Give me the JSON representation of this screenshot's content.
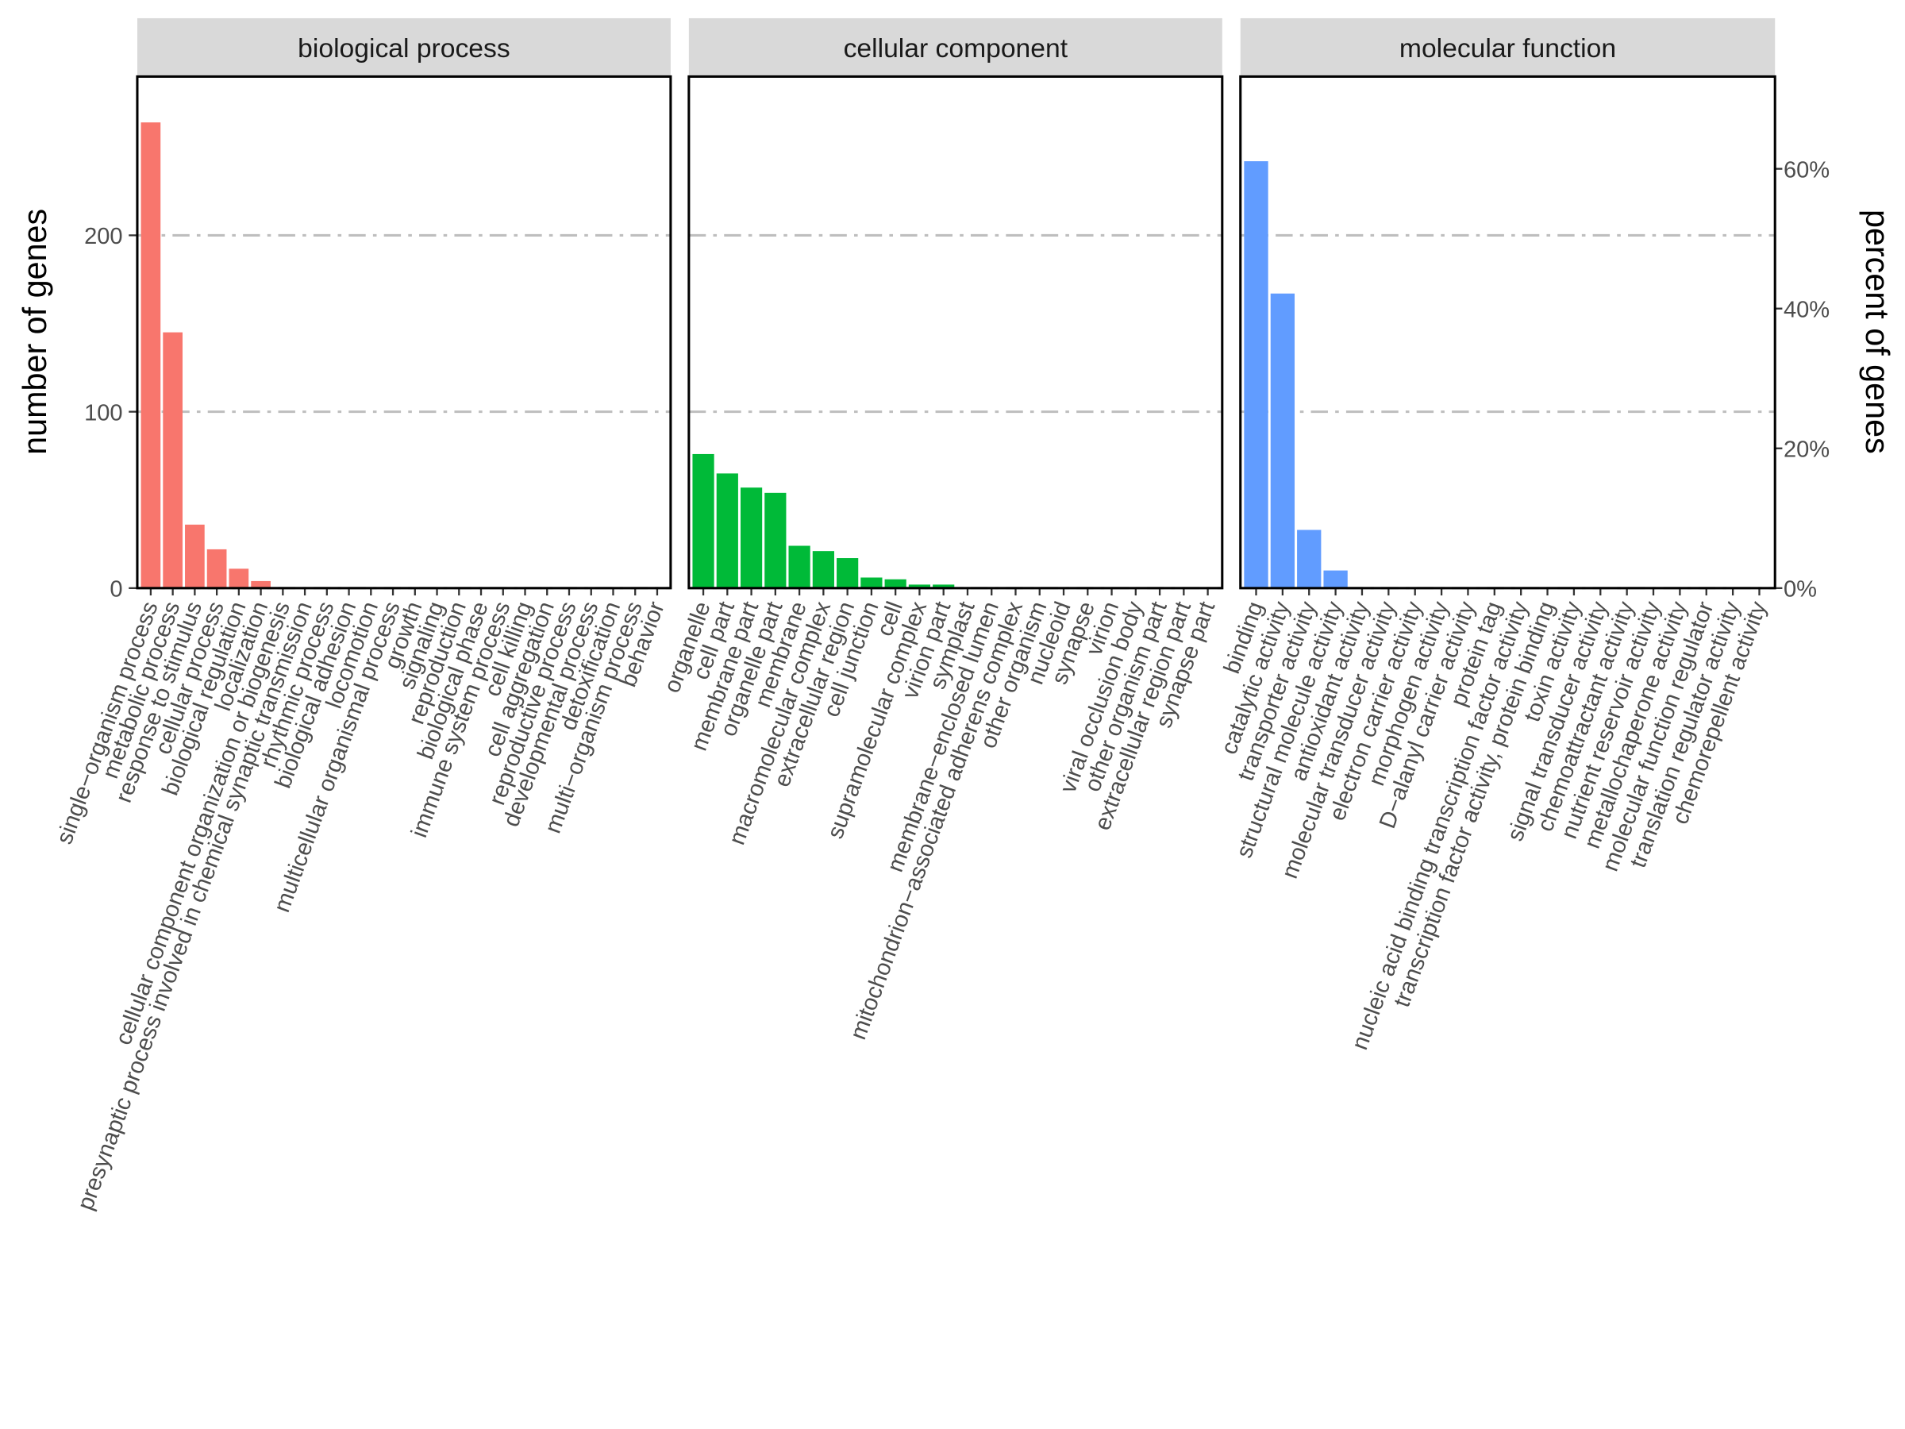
{
  "chart_data": {
    "type": "bar",
    "y_label": "number of genes",
    "y2_label": "percent of genes",
    "ylim": [
      0,
      290
    ],
    "yticks": [
      0,
      100,
      200
    ],
    "y2lim": [
      0,
      73.2
    ],
    "y2ticks": [
      {
        "value": 0,
        "label": "0%"
      },
      {
        "value": 20,
        "label": "20%"
      },
      {
        "value": 40,
        "label": "40%"
      },
      {
        "value": 60,
        "label": "60%"
      }
    ],
    "grid": true,
    "facets": [
      {
        "title": "biological process",
        "color": "#F8766D",
        "categories": [
          "single−organism process",
          "metabolic process",
          "response to stimulus",
          "cellular process",
          "biological regulation",
          "localization",
          "cellular component organization or biogenesis",
          "presynaptic process involved in chemical synaptic transmission",
          "rhythmic process",
          "biological adhesion",
          "locomotion",
          "multicellular organismal process",
          "growth",
          "signaling",
          "reproduction",
          "biological phase",
          "immune system process",
          "cell killing",
          "cell aggregation",
          "reproductive process",
          "developmental process",
          "detoxification",
          "multi−organism process",
          "behavior"
        ],
        "values": [
          264,
          145,
          36,
          22,
          11,
          4,
          0,
          0,
          0,
          0,
          0,
          0,
          0,
          0,
          0,
          0,
          0,
          0,
          0,
          0,
          0,
          0,
          0,
          0
        ]
      },
      {
        "title": "cellular component",
        "color": "#00BA38",
        "categories": [
          "organelle",
          "cell part",
          "membrane part",
          "organelle part",
          "membrane",
          "macromolecular complex",
          "extracellular region",
          "cell junction",
          "cell",
          "supramolecular complex",
          "virion part",
          "symplast",
          "membrane−enclosed lumen",
          "mitochondrion−associated adherens complex",
          "other organism",
          "nucleoid",
          "synapse",
          "virion",
          "viral occlusion body",
          "other organism part",
          "extracellular region part",
          "synapse part"
        ],
        "values": [
          76,
          65,
          57,
          54,
          24,
          21,
          17,
          6,
          5,
          2,
          2,
          0,
          0,
          0,
          0,
          0,
          0,
          0,
          0,
          0,
          0,
          0
        ]
      },
      {
        "title": "molecular function",
        "color": "#619CFF",
        "categories": [
          "binding",
          "catalytic activity",
          "transporter activity",
          "structural molecule activity",
          "antioxidant activity",
          "molecular transducer activity",
          "electron carrier activity",
          "morphogen activity",
          "D−alanyl carrier activity",
          "protein tag",
          "nucleic acid binding transcription factor activity",
          "transcription factor activity, protein binding",
          "toxin activity",
          "signal transducer activity",
          "chemoattractant activity",
          "nutrient reservoir activity",
          "metallochaperone activity",
          "molecular function regulator",
          "translation regulator activity",
          "chemorepellent activity"
        ],
        "values": [
          242,
          167,
          33,
          10,
          0,
          0,
          0,
          0,
          0,
          0,
          0,
          0,
          0,
          0,
          0,
          0,
          0,
          0,
          0,
          0
        ]
      }
    ]
  }
}
